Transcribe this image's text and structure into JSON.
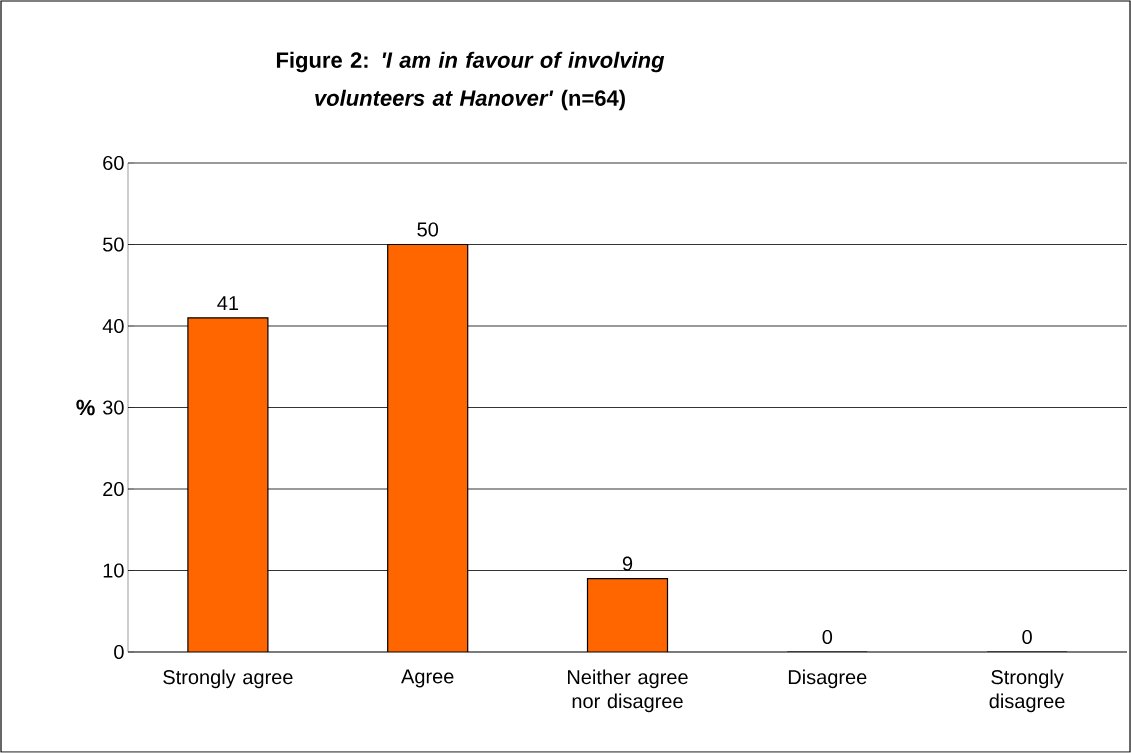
{
  "chart_data": {
    "type": "bar",
    "title": "Figure 2: *'I am in favour of involving volunteers at Hanover'* (n=64)",
    "ylabel": "%",
    "categories": [
      "Strongly agree",
      "Agree",
      "Neither agree nor disagree",
      "Disagree",
      "Strongly disagree"
    ],
    "values": [
      41,
      50,
      9,
      0,
      0
    ],
    "color": "#ff6600",
    "ylim": [
      0,
      60
    ],
    "yticks": [
      0,
      10,
      20,
      30,
      40,
      50,
      60
    ],
    "grid": "y",
    "data_labels": true
  }
}
